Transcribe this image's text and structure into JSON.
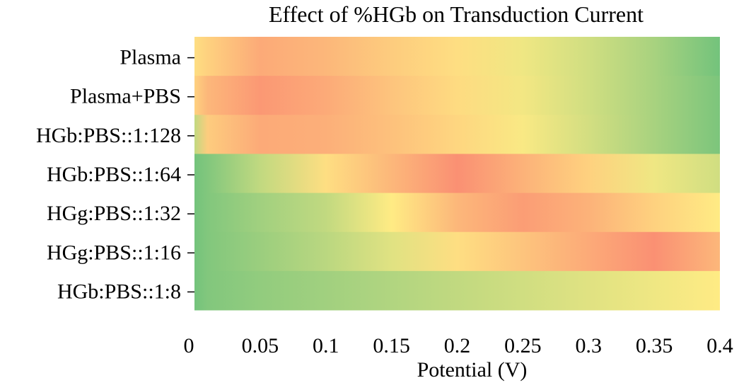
{
  "chart_data": {
    "type": "heatmap",
    "title": "Effect of %HGb on Transduction Current",
    "xlabel": "Potential (V)",
    "ylabel": "",
    "xlim": [
      0,
      0.4
    ],
    "x_ticks": [
      "0",
      "0.05",
      "0.1",
      "0.15",
      "0.2",
      "0.25",
      "0.3",
      "0.35",
      "0.4"
    ],
    "rows": [
      "Plasma",
      "Plasma+PBS",
      "HGb:PBS::1:128",
      "HGb:PBS::1:64",
      "HGg:PBS::1:32",
      "HGg:PBS::1:16",
      "HGb:PBS::1:8"
    ],
    "x": [
      0,
      0.01,
      0.05,
      0.1,
      0.15,
      0.2,
      0.25,
      0.3,
      0.35,
      0.4
    ],
    "values": [
      [
        0.55,
        0.6,
        0.75,
        0.7,
        0.62,
        0.55,
        0.45,
        0.35,
        0.22,
        0.05
      ],
      [
        0.6,
        0.7,
        0.82,
        0.75,
        0.65,
        0.56,
        0.46,
        0.35,
        0.22,
        0.08
      ],
      [
        0.3,
        0.62,
        0.75,
        0.73,
        0.66,
        0.58,
        0.48,
        0.36,
        0.22,
        0.08
      ],
      [
        0.05,
        0.1,
        0.3,
        0.55,
        0.7,
        0.85,
        0.72,
        0.6,
        0.45,
        0.35
      ],
      [
        0.05,
        0.1,
        0.2,
        0.3,
        0.5,
        0.7,
        0.8,
        0.72,
        0.6,
        0.5
      ],
      [
        0.05,
        0.1,
        0.18,
        0.28,
        0.4,
        0.55,
        0.65,
        0.75,
        0.85,
        0.7
      ],
      [
        0.05,
        0.1,
        0.15,
        0.2,
        0.25,
        0.3,
        0.35,
        0.4,
        0.45,
        0.5
      ]
    ],
    "colormap": [
      "#63be7b",
      "#ffeb84",
      "#f8696b"
    ],
    "grid": false,
    "legend": "none"
  }
}
